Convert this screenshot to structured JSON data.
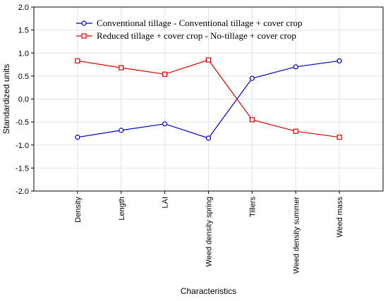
{
  "chart_data": {
    "type": "line",
    "categories": [
      "Density",
      "Length",
      "LAI",
      "Weed density spring",
      "Tillers",
      "Weed density summer",
      "Weed mass"
    ],
    "series": [
      {
        "name": "Conventional tillage - Conventional tillage + cover crop",
        "color": "#0000cc",
        "marker": "circle",
        "values": [
          -0.83,
          -0.68,
          -0.54,
          -0.85,
          0.45,
          0.7,
          0.83
        ]
      },
      {
        "name": "Reduced tillage + cover crop - No-tillage + cover crop",
        "color": "#dd0000",
        "marker": "square",
        "values": [
          0.83,
          0.68,
          0.54,
          0.85,
          -0.45,
          -0.7,
          -0.83
        ]
      }
    ],
    "yticks": [
      "2.0",
      "1.5",
      "1.0",
      "0.5",
      "0.0",
      "-0.5",
      "-1.0",
      "-1.5",
      "-2.0"
    ],
    "ylim": [
      -2.0,
      2.0
    ],
    "xlabel": "Characteristics",
    "ylabel": "Standardized units",
    "grid": true,
    "legend_position": "top"
  }
}
